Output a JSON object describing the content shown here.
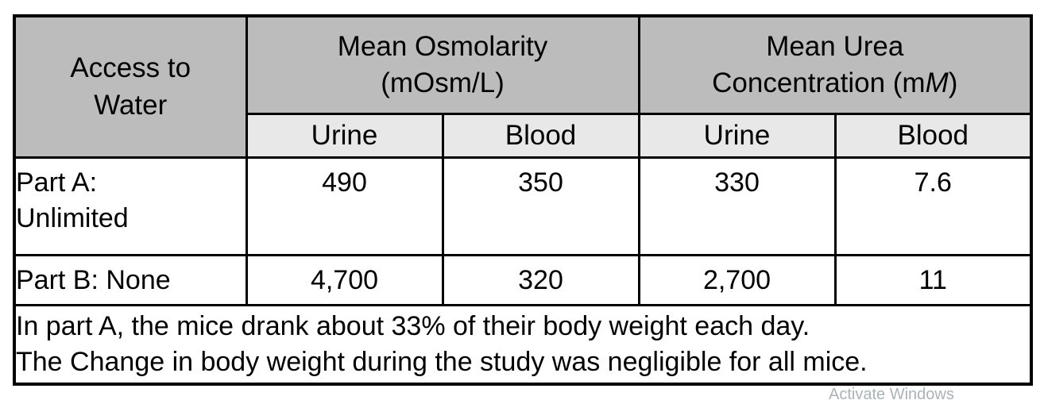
{
  "table": {
    "header": {
      "access_to_water": {
        "line1": "Access to",
        "line2": "Water"
      },
      "mean_osmolarity": {
        "line1": "Mean Osmolarity",
        "line2": "(mOsm/L)"
      },
      "mean_urea": {
        "line1": "Mean Urea",
        "line2_prefix": "Concentration (m",
        "line2_italic": "M",
        "line2_suffix": ")"
      },
      "subheaders": [
        "Urine",
        "Blood",
        "Urine",
        "Blood"
      ]
    },
    "rows": [
      {
        "label_line1": "Part A:",
        "label_line2": "Unlimited",
        "values": [
          "490",
          "350",
          "330",
          "7.6"
        ]
      },
      {
        "label_line1": "Part B: None",
        "label_line2": "",
        "values": [
          "4,700",
          "320",
          "2,700",
          "11"
        ]
      }
    ],
    "footnote": {
      "line1": "In part A, the mice drank about 33% of their body weight each day.",
      "line2": "The Change in body weight during the study was negligible for all mice."
    }
  },
  "watermark": "Activate Windows",
  "colors": {
    "header_bg": "#bcbcbc",
    "subheader_bg": "#e8e8e8",
    "border": "#000000"
  },
  "chart_data": {
    "type": "table",
    "title": "",
    "columns": [
      "Access to Water",
      "Mean Osmolarity (mOsm/L) - Urine",
      "Mean Osmolarity (mOsm/L) - Blood",
      "Mean Urea Concentration (mM) - Urine",
      "Mean Urea Concentration (mM) - Blood"
    ],
    "rows": [
      [
        "Part A: Unlimited",
        490,
        350,
        330,
        7.6
      ],
      [
        "Part B: None",
        4700,
        320,
        2700,
        11
      ]
    ],
    "notes": [
      "In part A, the mice drank about 33% of their body weight each day.",
      "The Change in body weight during the study was negligible for all mice."
    ]
  }
}
